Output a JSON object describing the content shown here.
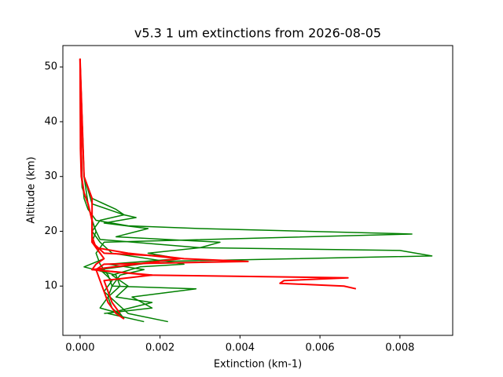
{
  "chart_data": {
    "type": "line",
    "title": "v5.3 1 um extinctions from 2026-08-05",
    "x_label": "Extinction (km-1)",
    "y_label": "Altitude (km)",
    "xlim": [
      -0.00043,
      0.00932
    ],
    "ylim": [
      1.0,
      53.9
    ],
    "xticks": [
      {
        "value": 0,
        "label": "0.000"
      },
      {
        "value": 0.002,
        "label": "0.002"
      },
      {
        "value": 0.004,
        "label": "0.004"
      },
      {
        "value": 0.006,
        "label": "0.006"
      },
      {
        "value": 0.008,
        "label": "0.008"
      }
    ],
    "yticks": [
      10,
      20,
      30,
      40,
      50
    ],
    "series": [
      {
        "color": "#008000",
        "x": [
          0,
          2e-05,
          5e-05,
          0.0001,
          0.0002,
          0.0004,
          0.0012,
          0.003,
          0.0083,
          0.0006,
          0.0004,
          0.0005,
          0.0007,
          0.0008,
          0.0007,
          0.0008,
          0.0011
        ],
        "values": [
          51.5,
          40,
          30,
          26,
          24,
          22,
          21,
          20.5,
          19.5,
          18,
          16,
          14,
          12,
          10,
          8,
          6,
          4
        ]
      },
      {
        "color": "#008000",
        "x": [
          0,
          1e-05,
          5e-05,
          0.0002,
          0.0003,
          0.0004,
          0.0005,
          0.003,
          0.008,
          0.0088,
          0.002,
          0.0005,
          0.0008,
          0.0006,
          0.0009,
          0.0012,
          0.0022
        ],
        "values": [
          51.5,
          35,
          28,
          25,
          22,
          20,
          18.5,
          17,
          16.5,
          15.5,
          14.5,
          13,
          11,
          9,
          7,
          5,
          3.5
        ]
      },
      {
        "color": "#008000",
        "x": [
          0,
          0.0001,
          0.0003,
          0.0011,
          0.0014,
          0.0006,
          0.0017,
          0.0009,
          0.0035,
          0.003,
          0.0017,
          0.0025,
          0.0007,
          0.0016,
          0.001,
          0.0008,
          0.0029,
          0.0013,
          0.0018,
          0.0006
        ],
        "values": [
          51.5,
          30,
          25,
          23,
          22.5,
          21.5,
          20.5,
          19,
          18,
          17,
          16,
          15,
          14,
          13,
          12,
          10,
          9.5,
          8,
          6,
          5
        ]
      },
      {
        "color": "#008000",
        "x": [
          0,
          0.0001,
          0.0003,
          0.0009,
          0.0011,
          0.0005,
          0.0003,
          0.0005,
          0.0008,
          0.0026,
          0.0015,
          0.0008,
          0.0012,
          0.0009,
          0.0018,
          0.0007,
          0.0016
        ],
        "values": [
          51.5,
          30,
          26,
          24,
          23,
          22,
          20,
          18,
          16,
          14,
          13.5,
          12,
          10,
          8,
          7,
          5,
          3.5
        ]
      },
      {
        "color": "#008000",
        "x": [
          0,
          0.0001,
          0.0002,
          0.0003,
          0.0004,
          0.0003,
          0.0006,
          0.0001,
          0.0009,
          0.001,
          0.0007,
          0.0005,
          0.001,
          0.0011
        ],
        "values": [
          51.5,
          30,
          25,
          22,
          20,
          18,
          15,
          13.5,
          12,
          10,
          8,
          6,
          5,
          4
        ]
      },
      {
        "color": "#ff0000",
        "x": [
          0,
          1e-05,
          3e-05,
          0.0001,
          0.0002,
          0.0003,
          0.0003,
          0.0003,
          0.0005,
          0.0006,
          0.0004,
          0.0003,
          0.0017,
          0.0067,
          0.0051,
          0.005,
          0.0066,
          0.0069
        ],
        "values": [
          51.5,
          35,
          30,
          27,
          25,
          22,
          20,
          18,
          16,
          15,
          14,
          13,
          12,
          11.5,
          11,
          10.5,
          10,
          9.5
        ]
      },
      {
        "color": "#ff0000",
        "x": [
          0,
          4e-05,
          0.0001,
          0.0002,
          0.0003,
          0.0003,
          0.0003,
          0.0006,
          0.002,
          0.0026,
          0.0042,
          0.0006,
          0.0004,
          0.0005,
          0.0006,
          0.0007,
          0.0009,
          0.0011
        ],
        "values": [
          51.5,
          30,
          27,
          25,
          22,
          20,
          18,
          16,
          15.5,
          15,
          14.5,
          14,
          13,
          11,
          9,
          7,
          5,
          4
        ]
      },
      {
        "color": "#ff0000",
        "x": [
          0,
          0.0001,
          0.0003,
          0.0003,
          0.0003,
          0.0004,
          0.0012,
          0.0025,
          0.0003,
          0.0018,
          0.0006,
          0.0007,
          0.0008,
          0.001
        ],
        "values": [
          51.5,
          30,
          26,
          22,
          19,
          17,
          16,
          15,
          13,
          12,
          11,
          9,
          7,
          5
        ]
      }
    ]
  }
}
